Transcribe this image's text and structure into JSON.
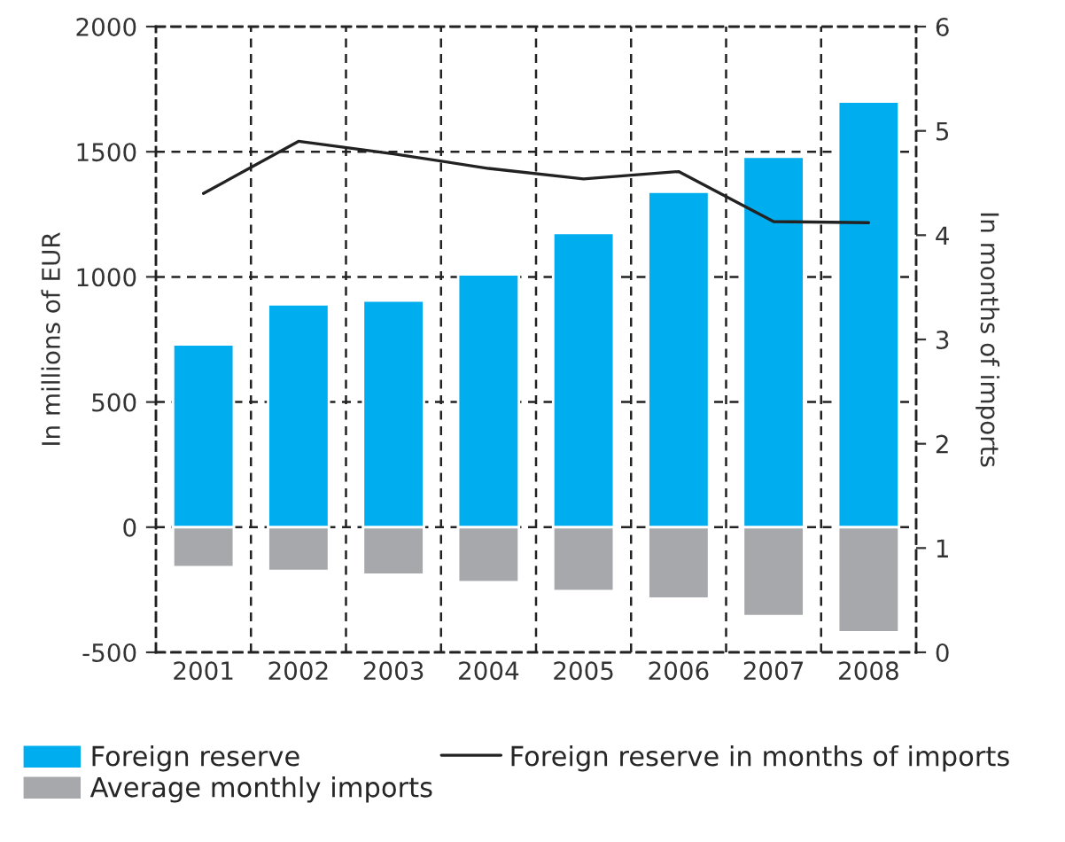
{
  "chart_data": {
    "type": "bar",
    "stacked": true,
    "categories": [
      "2001",
      "2002",
      "2003",
      "2004",
      "2005",
      "2006",
      "2007",
      "2008"
    ],
    "series": [
      {
        "name": "Foreign reserve",
        "color": "#00adee",
        "values": [
          730,
          890,
          905,
          1010,
          1175,
          1340,
          1480,
          1700
        ]
      },
      {
        "name": "Average monthly imports",
        "color": "#a7a8ab",
        "values": [
          -160,
          -175,
          -190,
          -220,
          -255,
          -285,
          -355,
          -420
        ]
      },
      {
        "name": "Foreign reserve in months of imports",
        "type": "line",
        "axis": "y2",
        "color": "#222222",
        "values": [
          4.4,
          4.9,
          4.78,
          4.64,
          4.54,
          4.61,
          4.13,
          4.12
        ]
      }
    ],
    "ylabel": "In millions of EUR",
    "y2label": "In months of imports",
    "ylim": [
      -500,
      2000
    ],
    "yticks": [
      -500,
      0,
      500,
      1000,
      1500,
      2000
    ],
    "y2lim": [
      0,
      6
    ],
    "y2ticks": [
      0,
      1,
      2,
      3,
      4,
      5,
      6
    ],
    "grid": true,
    "legend": "bottom",
    "marker": "none",
    "line_style": "solid"
  }
}
